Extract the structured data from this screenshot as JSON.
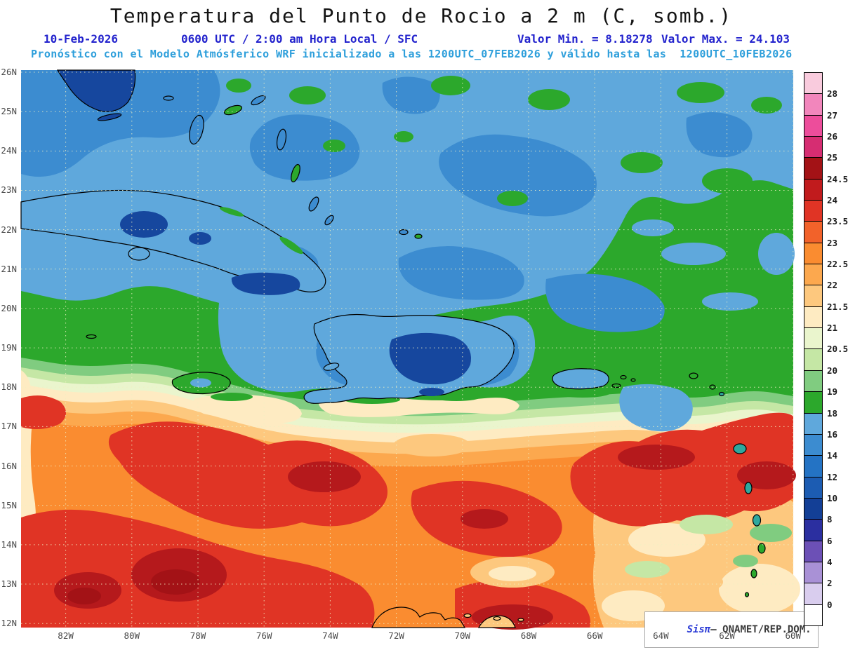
{
  "header": {
    "title": "Temperatura del Punto de Rocio a 2 m (C, somb.)",
    "line1": {
      "date": "10-Feb-2026",
      "time": "0600 UTC / 2:00 am Hora Local / SFC",
      "min": "Valor Min. = 8.18278",
      "max": "Valor Max. = 24.103"
    },
    "line2": "Pronóstico con el Modelo Atmósferico WRF inicializado a las 1200UTC_07FEB2026 y válido hasta las  1200UTC_10FEB2026"
  },
  "map": {
    "lat_labels": [
      "26N",
      "25N",
      "24N",
      "23N",
      "22N",
      "21N",
      "20N",
      "19N",
      "18N",
      "17N",
      "16N",
      "15N",
      "14N",
      "13N",
      "12N"
    ],
    "lon_labels": [
      "82W",
      "80W",
      "78W",
      "76W",
      "74W",
      "72W",
      "70W",
      "68W",
      "66W",
      "64W",
      "62W",
      "60W"
    ],
    "watermark": {
      "brand": "Sisπ",
      "org": "– ONAMET/REP.DOM."
    }
  },
  "colorbar": {
    "cells": [
      {
        "color": "#F9CBDD",
        "label": "28"
      },
      {
        "color": "#F286BC",
        "label": "27"
      },
      {
        "color": "#ED4D9B",
        "label": "26"
      },
      {
        "color": "#D62D72",
        "label": "25"
      },
      {
        "color": "#A31216",
        "label": "24.5"
      },
      {
        "color": "#C11B1D",
        "label": "24"
      },
      {
        "color": "#E03425",
        "label": "23.5"
      },
      {
        "color": "#F2622A",
        "label": "23"
      },
      {
        "color": "#FA8C30",
        "label": "22.5"
      },
      {
        "color": "#FCA84E",
        "label": "22"
      },
      {
        "color": "#FDC87E",
        "label": "21.5"
      },
      {
        "color": "#FEEBC2",
        "label": "21"
      },
      {
        "color": "#EAF5CD",
        "label": "20.5"
      },
      {
        "color": "#C5E7A5",
        "label": "20"
      },
      {
        "color": "#80CC80",
        "label": "19"
      },
      {
        "color": "#2CA82C",
        "label": "18"
      },
      {
        "color": "#5FA8DC",
        "label": "16"
      },
      {
        "color": "#3C8CD0",
        "label": "14"
      },
      {
        "color": "#2473C4",
        "label": "12"
      },
      {
        "color": "#1C5CB2",
        "label": "10"
      },
      {
        "color": "#133F96",
        "label": "8"
      },
      {
        "color": "#2B2FA0",
        "label": "6"
      },
      {
        "color": "#6C50B6",
        "label": "4"
      },
      {
        "color": "#A991D6",
        "label": "2"
      },
      {
        "color": "#D9CDEE",
        "label": "0"
      },
      {
        "color": "#FFFFFF",
        "label": ""
      }
    ]
  },
  "chart_data": {
    "type": "heatmap",
    "variable": "Temperatura del Punto de Rocio a 2 m (C, somb.)",
    "model": "WRF",
    "value_min": 8.18278,
    "value_max": 24.103,
    "colorbar_levels": [
      28,
      27,
      26,
      25,
      24.5,
      24,
      23.5,
      23,
      22.5,
      22,
      21.5,
      21,
      20.5,
      20,
      19,
      18,
      16,
      14,
      12,
      10,
      8,
      6,
      4,
      2,
      0
    ],
    "lat_range": [
      "12N",
      "26N"
    ],
    "lon_range": [
      "82W",
      "60W"
    ],
    "legend_position": "right",
    "grid": "dotted"
  }
}
